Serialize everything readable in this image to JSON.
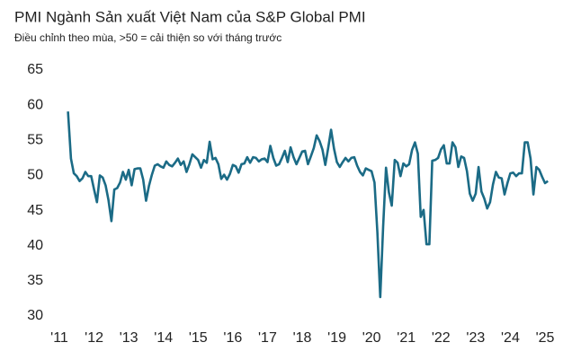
{
  "chart_data": {
    "type": "line",
    "title": "PMI Ngành Sản xuất Việt Nam của S&P Global PMI",
    "subtitle": "Điều chỉnh theo mùa, >50 = cải thiện so với tháng trước",
    "categories": [
      "'11",
      null,
      null,
      null,
      null,
      null,
      null,
      null,
      null,
      null,
      null,
      null,
      "'12",
      null,
      null,
      null,
      null,
      null,
      null,
      null,
      null,
      null,
      null,
      null,
      "'13",
      null,
      null,
      null,
      null,
      null,
      null,
      null,
      null,
      null,
      null,
      null,
      "'14",
      null,
      null,
      null,
      null,
      null,
      null,
      null,
      null,
      null,
      null,
      null,
      "'15",
      null,
      null,
      null,
      null,
      null,
      null,
      null,
      null,
      null,
      null,
      null,
      "'16",
      null,
      null,
      null,
      null,
      null,
      null,
      null,
      null,
      null,
      null,
      null,
      "'17",
      null,
      null,
      null,
      null,
      null,
      null,
      null,
      null,
      null,
      null,
      null,
      "'18",
      null,
      null,
      null,
      null,
      null,
      null,
      null,
      null,
      null,
      null,
      null,
      "'19",
      null,
      null,
      null,
      null,
      null,
      null,
      null,
      null,
      null,
      null,
      null,
      "'20",
      null,
      null,
      null,
      null,
      null,
      null,
      null,
      null,
      null,
      null,
      null,
      "'21",
      null,
      null,
      null,
      null,
      null,
      null,
      null,
      null,
      null,
      null,
      null,
      "'22",
      null,
      null,
      null,
      null,
      null,
      null,
      null,
      null,
      null,
      null,
      null,
      "'23",
      null,
      null,
      null,
      null,
      null,
      null,
      null,
      null,
      null,
      null,
      null,
      "'24",
      null,
      null,
      null,
      null,
      null,
      null,
      null,
      null,
      null,
      null,
      null,
      "'25",
      null
    ],
    "series": [
      {
        "color": "#1b6b86",
        "values": [
          null,
          null,
          null,
          59.1,
          52.4,
          50.3,
          49.9,
          49.2,
          49.6,
          50.5,
          49.9,
          49.9,
          48.0,
          46.2,
          50.0,
          49.7,
          48.6,
          46.5,
          43.5,
          48.0,
          48.2,
          49.0,
          50.5,
          49.4,
          50.8,
          48.6,
          50.9,
          51.0,
          51.0,
          49.4,
          46.4,
          48.5,
          50.1,
          51.4,
          51.6,
          51.3,
          51.1,
          52.0,
          51.5,
          51.3,
          51.8,
          52.4,
          51.5,
          52.0,
          50.5,
          51.6,
          53.0,
          52.6,
          52.2,
          51.1,
          52.2,
          51.8,
          54.8,
          52.3,
          52.5,
          51.6,
          49.5,
          50.1,
          49.4,
          50.2,
          51.5,
          51.3,
          50.4,
          51.6,
          51.7,
          52.6,
          51.8,
          52.6,
          52.5,
          52.0,
          52.3,
          52.4,
          51.9,
          54.2,
          52.5,
          51.4,
          51.6,
          52.5,
          53.5,
          51.9,
          54.0,
          52.6,
          51.6,
          52.5,
          53.4,
          53.5,
          51.6,
          52.7,
          53.9,
          55.7,
          54.9,
          53.7,
          51.5,
          53.9,
          56.5,
          53.8,
          51.9,
          51.2,
          51.9,
          52.5,
          52.0,
          52.5,
          52.6,
          51.4,
          50.5,
          50.0,
          51.0,
          50.8,
          50.6,
          49.0,
          41.9,
          32.7,
          42.7,
          51.1,
          47.6,
          45.7,
          52.2,
          51.8,
          49.9,
          51.7,
          51.3,
          51.6,
          53.6,
          54.7,
          53.1,
          44.1,
          45.1,
          40.2,
          40.2,
          52.1,
          52.2,
          52.5,
          53.7,
          54.3,
          51.7,
          51.7,
          54.7,
          54.0,
          51.2,
          52.7,
          52.5,
          50.6,
          47.4,
          46.4,
          47.4,
          51.2,
          47.7,
          46.7,
          45.3,
          46.2,
          48.7,
          50.5,
          49.7,
          49.6,
          47.3,
          48.9,
          50.3,
          50.4,
          49.9,
          50.3,
          50.3,
          54.7,
          54.7,
          52.4,
          47.3,
          51.2,
          50.8,
          49.8,
          48.9,
          49.2
        ]
      }
    ],
    "ylim": [
      30,
      65
    ],
    "yticks": [
      30,
      35,
      40,
      45,
      50,
      55,
      60,
      65
    ],
    "grid": false
  }
}
